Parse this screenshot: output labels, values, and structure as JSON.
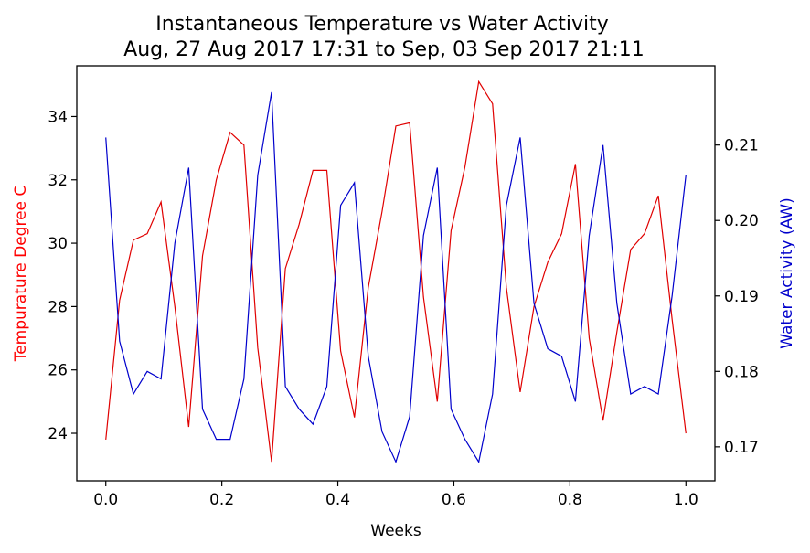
{
  "chart_data": {
    "type": "line",
    "title": "Instantaneous Temperature vs Water Activity",
    "subtitle": "Aug, 27 Aug 2017 17:31 to Sep, 03 Sep 2017 21:11",
    "xlabel": "Weeks",
    "ylabel_left": "Tempurature Degree C",
    "ylabel_right": "Water Activity (AW)",
    "xlim": [
      -0.05,
      1.05
    ],
    "ylim_left": [
      22.5,
      35.6
    ],
    "ylim_right": [
      0.1655,
      0.2205
    ],
    "x_ticks": [
      0.0,
      0.2,
      0.4,
      0.6,
      0.8,
      1.0
    ],
    "x_tick_labels": [
      "0.0",
      "0.2",
      "0.4",
      "0.6",
      "0.8",
      "1.0"
    ],
    "y_left_ticks": [
      24,
      26,
      28,
      30,
      32,
      34
    ],
    "y_left_tick_labels": [
      "24",
      "26",
      "28",
      "30",
      "32",
      "34"
    ],
    "y_right_ticks": [
      0.17,
      0.18,
      0.19,
      0.2,
      0.21
    ],
    "y_right_tick_labels": [
      "0.17",
      "0.18",
      "0.19",
      "0.20",
      "0.21"
    ],
    "grid": false,
    "series": [
      {
        "axis": "left",
        "color": "#e00000",
        "x": [
          0.0,
          0.0238,
          0.0476,
          0.0714,
          0.0952,
          0.119,
          0.1429,
          0.1667,
          0.1905,
          0.2143,
          0.2381,
          0.2619,
          0.2857,
          0.3095,
          0.3333,
          0.3571,
          0.381,
          0.4048,
          0.4286,
          0.4524,
          0.4762,
          0.5,
          0.5238,
          0.5476,
          0.5714,
          0.5952,
          0.619,
          0.6429,
          0.6667,
          0.6905,
          0.7143,
          0.7381,
          0.7619,
          0.7857,
          0.8095,
          0.8333,
          0.8571,
          0.881,
          0.9048,
          0.9286,
          0.9524,
          0.9762,
          1.0
        ],
        "values": [
          23.8,
          28.2,
          30.1,
          30.3,
          31.3,
          28.0,
          24.2,
          29.6,
          32.0,
          33.5,
          33.1,
          26.7,
          23.1,
          29.2,
          30.6,
          32.3,
          32.3,
          26.6,
          24.5,
          28.6,
          31.0,
          33.7,
          33.8,
          28.3,
          25.0,
          30.4,
          32.4,
          35.1,
          34.4,
          28.6,
          25.3,
          28.0,
          29.4,
          30.3,
          32.5,
          27.0,
          24.4,
          27.2,
          29.8,
          30.3,
          31.5,
          27.6,
          24.0
        ]
      },
      {
        "axis": "right",
        "color": "#0000cc",
        "x": [
          0.0,
          0.0238,
          0.0476,
          0.0714,
          0.0952,
          0.119,
          0.1429,
          0.1667,
          0.1905,
          0.2143,
          0.2381,
          0.2619,
          0.2857,
          0.3095,
          0.3333,
          0.3571,
          0.381,
          0.4048,
          0.4286,
          0.4524,
          0.4762,
          0.5,
          0.5238,
          0.5476,
          0.5714,
          0.5952,
          0.619,
          0.6429,
          0.6667,
          0.6905,
          0.7143,
          0.7381,
          0.7619,
          0.7857,
          0.8095,
          0.8333,
          0.8571,
          0.881,
          0.9048,
          0.9286,
          0.9524,
          0.9762,
          1.0
        ],
        "values": [
          0.211,
          0.184,
          0.177,
          0.18,
          0.179,
          0.197,
          0.207,
          0.175,
          0.171,
          0.171,
          0.179,
          0.206,
          0.217,
          0.178,
          0.175,
          0.173,
          0.178,
          0.202,
          0.205,
          0.182,
          0.172,
          0.168,
          0.174,
          0.198,
          0.207,
          0.175,
          0.171,
          0.168,
          0.177,
          0.202,
          0.211,
          0.189,
          0.183,
          0.182,
          0.176,
          0.198,
          0.21,
          0.189,
          0.177,
          0.178,
          0.177,
          0.19,
          0.206
        ]
      }
    ]
  }
}
